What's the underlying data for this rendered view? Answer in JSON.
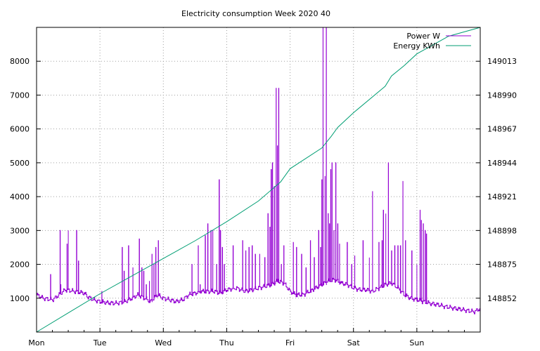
{
  "chart_data": {
    "type": "line",
    "title": "Electricity consumption Week 2020 40",
    "xlabel": "",
    "ylabel": "",
    "grid": true,
    "legend_position": "top-right",
    "x_ticks": [
      "Mon",
      "Tue",
      "Wed",
      "Thu",
      "Fri",
      "Sat",
      "Sun"
    ],
    "x_range_days": [
      0,
      7
    ],
    "y_left": {
      "ticks": [
        1000,
        2000,
        3000,
        4000,
        5000,
        6000,
        7000,
        8000
      ],
      "ylim": [
        0,
        9000
      ]
    },
    "y_right": {
      "ticks": [
        148852,
        148875,
        148898,
        148921,
        148944,
        148967,
        148990,
        149013
      ],
      "ylim": [
        148829,
        149036
      ]
    },
    "series": [
      {
        "name": "Power W",
        "axis": "left",
        "color": "#9400d3",
        "x_unit": "day",
        "baseline": [
          [
            0.0,
            1100
          ],
          [
            0.1,
            1000
          ],
          [
            0.25,
            950
          ],
          [
            0.35,
            1100
          ],
          [
            0.45,
            1250
          ],
          [
            0.6,
            1200
          ],
          [
            0.75,
            1150
          ],
          [
            0.8,
            1050
          ],
          [
            0.9,
            950
          ],
          [
            1.0,
            900
          ],
          [
            1.1,
            870
          ],
          [
            1.25,
            850
          ],
          [
            1.4,
            900
          ],
          [
            1.5,
            1000
          ],
          [
            1.6,
            1100
          ],
          [
            1.7,
            1000
          ],
          [
            1.8,
            900
          ],
          [
            1.9,
            1100
          ],
          [
            2.0,
            1000
          ],
          [
            2.1,
            950
          ],
          [
            2.2,
            900
          ],
          [
            2.3,
            950
          ],
          [
            2.4,
            1100
          ],
          [
            2.5,
            1150
          ],
          [
            2.6,
            1200
          ],
          [
            2.7,
            1200
          ],
          [
            2.8,
            1200
          ],
          [
            2.9,
            1150
          ],
          [
            3.0,
            1250
          ],
          [
            3.15,
            1300
          ],
          [
            3.3,
            1200
          ],
          [
            3.4,
            1250
          ],
          [
            3.5,
            1300
          ],
          [
            3.6,
            1350
          ],
          [
            3.7,
            1400
          ],
          [
            3.8,
            1500
          ],
          [
            3.9,
            1450
          ],
          [
            4.0,
            1200
          ],
          [
            4.1,
            1100
          ],
          [
            4.2,
            1100
          ],
          [
            4.3,
            1200
          ],
          [
            4.4,
            1300
          ],
          [
            4.5,
            1400
          ],
          [
            4.6,
            1500
          ],
          [
            4.7,
            1550
          ],
          [
            4.8,
            1450
          ],
          [
            4.9,
            1400
          ],
          [
            5.0,
            1300
          ],
          [
            5.1,
            1250
          ],
          [
            5.2,
            1250
          ],
          [
            5.3,
            1200
          ],
          [
            5.4,
            1300
          ],
          [
            5.5,
            1400
          ],
          [
            5.6,
            1450
          ],
          [
            5.7,
            1300
          ],
          [
            5.8,
            1100
          ],
          [
            5.9,
            1000
          ],
          [
            6.0,
            950
          ],
          [
            6.1,
            900
          ],
          [
            6.2,
            850
          ],
          [
            6.35,
            800
          ],
          [
            6.45,
            750
          ],
          [
            6.6,
            700
          ],
          [
            6.75,
            650
          ],
          [
            6.9,
            600
          ],
          [
            7.0,
            700
          ]
        ],
        "spikes": [
          [
            0.22,
            1700
          ],
          [
            0.37,
            3000
          ],
          [
            0.38,
            1400
          ],
          [
            0.48,
            2600
          ],
          [
            0.5,
            3000
          ],
          [
            0.63,
            3000
          ],
          [
            0.66,
            2100
          ],
          [
            1.03,
            1200
          ],
          [
            1.35,
            2500
          ],
          [
            1.38,
            1800
          ],
          [
            1.45,
            2550
          ],
          [
            1.52,
            1900
          ],
          [
            1.62,
            2750
          ],
          [
            1.66,
            1900
          ],
          [
            1.69,
            1800
          ],
          [
            1.73,
            1400
          ],
          [
            1.78,
            1500
          ],
          [
            1.82,
            2300
          ],
          [
            1.85,
            2000
          ],
          [
            1.88,
            2500
          ],
          [
            1.92,
            2700
          ],
          [
            2.45,
            2000
          ],
          [
            2.55,
            2550
          ],
          [
            2.58,
            1400
          ],
          [
            2.66,
            2850
          ],
          [
            2.7,
            3200
          ],
          [
            2.75,
            3000
          ],
          [
            2.78,
            3000
          ],
          [
            2.84,
            2000
          ],
          [
            2.88,
            4500
          ],
          [
            2.9,
            3000
          ],
          [
            2.93,
            2500
          ],
          [
            2.96,
            2000
          ],
          [
            3.1,
            2550
          ],
          [
            3.25,
            2700
          ],
          [
            3.3,
            2400
          ],
          [
            3.35,
            2500
          ],
          [
            3.4,
            2550
          ],
          [
            3.45,
            2300
          ],
          [
            3.52,
            2300
          ],
          [
            3.6,
            2200
          ],
          [
            3.65,
            3500
          ],
          [
            3.68,
            3100
          ],
          [
            3.7,
            4800
          ],
          [
            3.72,
            5000
          ],
          [
            3.75,
            4300
          ],
          [
            3.78,
            7200
          ],
          [
            3.8,
            5500
          ],
          [
            3.82,
            7200
          ],
          [
            3.86,
            2000
          ],
          [
            3.9,
            2550
          ],
          [
            4.05,
            2650
          ],
          [
            4.1,
            2500
          ],
          [
            4.18,
            2300
          ],
          [
            4.25,
            1900
          ],
          [
            4.32,
            2700
          ],
          [
            4.38,
            2200
          ],
          [
            4.45,
            3000
          ],
          [
            4.48,
            2500
          ],
          [
            4.5,
            4500
          ],
          [
            4.52,
            9000
          ],
          [
            4.55,
            4600
          ],
          [
            4.57,
            9000
          ],
          [
            4.6,
            3500
          ],
          [
            4.62,
            3200
          ],
          [
            4.64,
            4800
          ],
          [
            4.66,
            5000
          ],
          [
            4.69,
            3000
          ],
          [
            4.72,
            5000
          ],
          [
            4.75,
            3200
          ],
          [
            4.78,
            2600
          ],
          [
            4.9,
            2650
          ],
          [
            4.97,
            2000
          ],
          [
            5.02,
            2250
          ],
          [
            5.15,
            2700
          ],
          [
            5.25,
            2200
          ],
          [
            5.3,
            4150
          ],
          [
            5.4,
            2650
          ],
          [
            5.45,
            2700
          ],
          [
            5.47,
            3600
          ],
          [
            5.51,
            3500
          ],
          [
            5.55,
            5000
          ],
          [
            5.6,
            2400
          ],
          [
            5.65,
            2550
          ],
          [
            5.7,
            2550
          ],
          [
            5.74,
            2550
          ],
          [
            5.78,
            4450
          ],
          [
            5.82,
            2700
          ],
          [
            5.92,
            2400
          ],
          [
            6.0,
            2000
          ],
          [
            6.05,
            3600
          ],
          [
            6.07,
            3300
          ],
          [
            6.1,
            3200
          ],
          [
            6.13,
            3000
          ],
          [
            6.15,
            2900
          ]
        ]
      },
      {
        "name": "Energy KWh",
        "axis": "right",
        "color": "#009e73",
        "x_unit": "day",
        "points": [
          [
            0.0,
            148829
          ],
          [
            0.5,
            148842
          ],
          [
            1.0,
            148855
          ],
          [
            1.5,
            148867
          ],
          [
            2.0,
            148879
          ],
          [
            2.5,
            148891
          ],
          [
            3.0,
            148904
          ],
          [
            3.5,
            148918
          ],
          [
            3.85,
            148931
          ],
          [
            4.0,
            148940
          ],
          [
            4.5,
            148954
          ],
          [
            4.65,
            148962
          ],
          [
            4.75,
            148968
          ],
          [
            5.0,
            148978
          ],
          [
            5.5,
            148996
          ],
          [
            5.6,
            149003
          ],
          [
            5.8,
            149010
          ],
          [
            6.0,
            149018
          ],
          [
            6.5,
            149030
          ],
          [
            7.0,
            149036
          ]
        ]
      }
    ]
  }
}
